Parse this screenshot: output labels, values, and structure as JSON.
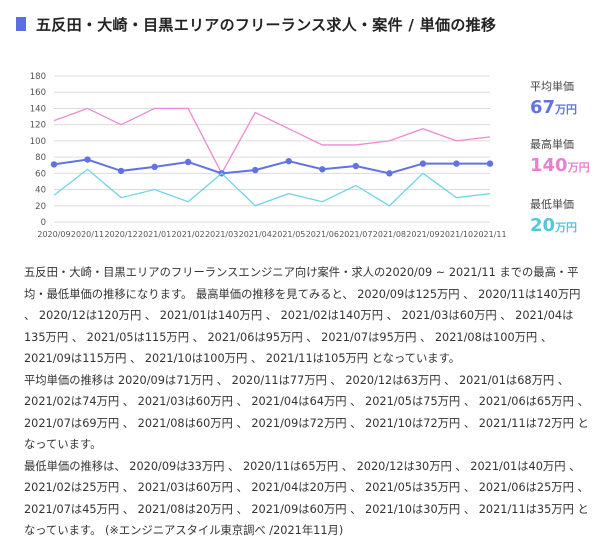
{
  "page": {
    "title": "五反田・大崎・目黒エリアのフリーランス求人・案件 / 単価の推移"
  },
  "colors": {
    "accent": "#5b6fe0",
    "avg": "#6272e3",
    "max": "#ea8bd3",
    "min": "#6fd5e6",
    "grid": "#dcdcdc"
  },
  "summary": [
    {
      "label": "平均単価",
      "value": "67",
      "unit": "万円",
      "color": "#6272e3"
    },
    {
      "label": "最高単価",
      "value": "140",
      "unit": "万円",
      "color": "#ea7fd0"
    },
    {
      "label": "最低単価",
      "value": "20",
      "unit": "万円",
      "color": "#4fc8de"
    }
  ],
  "chart_data": {
    "type": "line",
    "categories": [
      "2020/09",
      "2020/11",
      "2020/12",
      "2021/01",
      "2021/02",
      "2021/03",
      "2021/04",
      "2021/05",
      "2021/06",
      "2021/07",
      "2021/08",
      "2021/09",
      "2021/10",
      "2021/11"
    ],
    "y_ticks": [
      "0",
      "20",
      "40",
      "60",
      "80",
      "100",
      "120",
      "140",
      "160",
      "180"
    ],
    "ylim": [
      0,
      180
    ],
    "grid": true,
    "series": [
      {
        "key": "max",
        "values": [
          125,
          140,
          120,
          140,
          140,
          60,
          135,
          115,
          95,
          95,
          100,
          115,
          100,
          105
        ]
      },
      {
        "key": "avg",
        "values": [
          71,
          77,
          63,
          68,
          74,
          60,
          64,
          75,
          65,
          69,
          60,
          72,
          72,
          72
        ]
      },
      {
        "key": "min",
        "values": [
          33,
          65,
          30,
          40,
          25,
          60,
          20,
          35,
          25,
          45,
          20,
          60,
          30,
          35
        ]
      }
    ]
  },
  "description": [
    "五反田・大崎・目黒エリアのフリーランスエンジニア向け案件・求人の2020/09 ~ 2021/11 までの最高・平均・最低単価の推移になります。 最高単価の推移を見てみると、 2020/09は125万円 、 2020/11は140万円 、 2020/12は120万円 、 2021/01は140万円 、 2021/02は140万円 、 2021/03は60万円 、 2021/04は135万円 、 2021/05は115万円 、 2021/06は95万円 、 2021/07は95万円 、 2021/08は100万円 、 2021/09は115万円 、 2021/10は100万円 、 2021/11は105万円 となっています。",
    "平均単価の推移は 2020/09は71万円 、 2020/11は77万円 、 2020/12は63万円 、 2021/01は68万円 、 2021/02は74万円 、 2021/03は60万円 、 2021/04は64万円 、 2021/05は75万円 、 2021/06は65万円 、 2021/07は69万円 、 2021/08は60万円 、 2021/09は72万円 、 2021/10は72万円 、 2021/11は72万円 となっています。",
    "最低単価の推移は、 2020/09は33万円 、 2020/11は65万円 、 2020/12は30万円 、 2021/01は40万円 、 2021/02は25万円 、 2021/03は60万円 、 2021/04は20万円 、 2021/05は35万円 、 2021/06は25万円 、 2021/07は45万円 、 2021/08は20万円 、 2021/09は60万円 、 2021/10は30万円 、 2021/11は35万円 となっています。 (※エンジニアスタイル東京調べ /2021年11月)"
  ]
}
